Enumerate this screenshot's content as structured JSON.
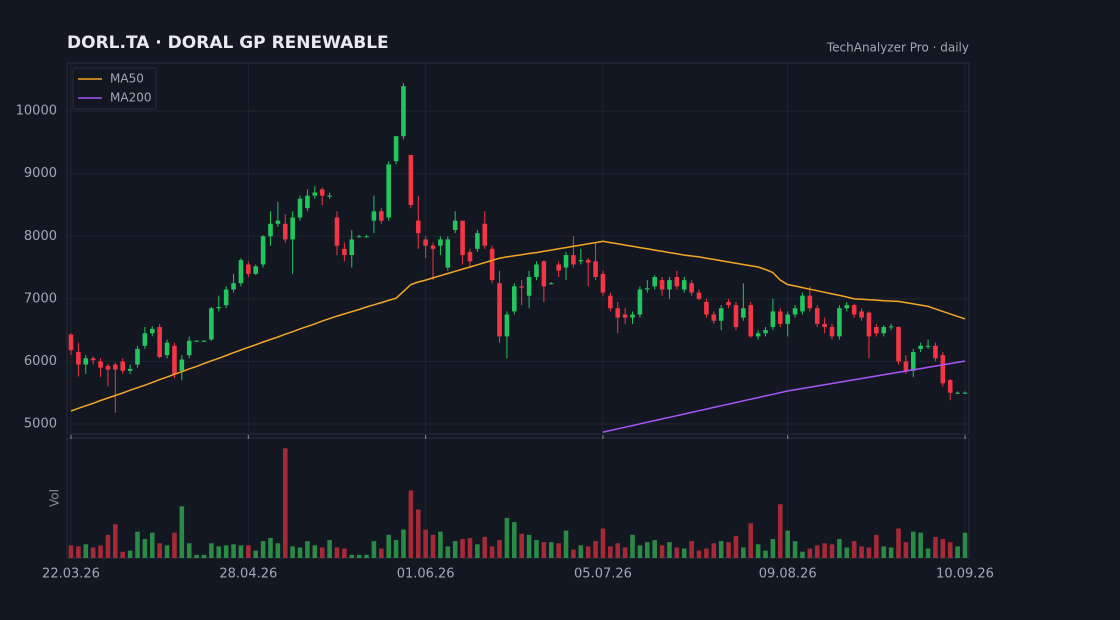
{
  "chart_data": {
    "type": "candlestick",
    "title": "DORL.TA  ·  DORAL GP RENEWABLE",
    "subtitle": "TechAnalyzer Pro · daily",
    "volume_label": "Vol",
    "x": [
      "2026-03-22",
      "2026-03-23",
      "2026-03-24",
      "2026-03-25",
      "2026-03-26",
      "2026-03-29",
      "2026-03-30",
      "2026-03-31",
      "2026-04-05",
      "2026-04-06",
      "2026-04-07",
      "2026-04-09",
      "2026-04-12",
      "2026-04-13",
      "2026-04-14",
      "2026-04-15",
      "2026-04-16",
      "2026-04-19",
      "2026-04-20",
      "2026-04-21",
      "2026-04-22",
      "2026-04-23",
      "2026-04-26",
      "2026-04-27",
      "2026-04-28",
      "2026-04-29",
      "2026-04-30",
      "2026-05-03",
      "2026-05-04",
      "2026-05-05",
      "2026-05-06",
      "2026-05-07",
      "2026-05-10",
      "2026-05-11",
      "2026-05-12",
      "2026-05-13",
      "2026-05-14",
      "2026-05-17",
      "2026-05-18",
      "2026-05-19",
      "2026-05-20",
      "2026-05-21",
      "2026-05-24",
      "2026-05-25",
      "2026-05-26",
      "2026-05-27",
      "2026-05-28",
      "2026-05-31",
      "2026-06-01",
      "2026-06-02",
      "2026-06-03",
      "2026-06-04",
      "2026-06-07",
      "2026-06-08",
      "2026-06-09",
      "2026-06-10",
      "2026-06-11",
      "2026-06-14",
      "2026-06-15",
      "2026-06-16",
      "2026-06-17",
      "2026-06-18",
      "2026-06-21",
      "2026-06-22",
      "2026-06-23",
      "2026-06-24",
      "2026-06-25",
      "2026-06-28",
      "2026-06-29",
      "2026-06-30",
      "2026-07-01",
      "2026-07-02",
      "2026-07-05",
      "2026-07-06",
      "2026-07-07",
      "2026-07-08",
      "2026-07-09",
      "2026-07-12",
      "2026-07-13",
      "2026-07-14",
      "2026-07-15",
      "2026-07-16",
      "2026-07-19",
      "2026-07-20",
      "2026-07-21",
      "2026-07-22",
      "2026-07-23",
      "2026-07-26",
      "2026-07-27",
      "2026-07-28",
      "2026-07-29",
      "2026-07-30",
      "2026-08-02",
      "2026-08-03",
      "2026-08-04",
      "2026-08-05",
      "2026-08-06",
      "2026-08-09",
      "2026-08-10",
      "2026-08-11",
      "2026-08-12",
      "2026-08-13",
      "2026-08-16",
      "2026-08-17",
      "2026-08-18",
      "2026-08-19",
      "2026-08-20",
      "2026-08-23",
      "2026-08-24",
      "2026-08-25",
      "2026-08-26",
      "2026-08-27",
      "2026-08-30",
      "2026-08-31",
      "2026-09-01",
      "2026-09-02",
      "2026-09-03",
      "2026-09-06",
      "2026-09-07",
      "2026-09-08",
      "2026-09-09",
      "2026-09-10"
    ],
    "open": [
      6430,
      6150,
      5950,
      6050,
      6000,
      5930,
      5950,
      6000,
      5850,
      5950,
      6250,
      6450,
      6550,
      6100,
      6250,
      5850,
      6100,
      6330,
      6330,
      6350,
      6850,
      6900,
      7150,
      7250,
      7550,
      7400,
      7550,
      8000,
      8200,
      8200,
      7950,
      8300,
      8450,
      8650,
      8750,
      8650,
      8300,
      7800,
      7700,
      8000,
      8000,
      8250,
      8400,
      8300,
      9200,
      9600,
      9300,
      8250,
      7950,
      7850,
      7850,
      7500,
      8100,
      8250,
      7750,
      7800,
      8200,
      7800,
      7250,
      6400,
      6800,
      7200,
      7050,
      7350,
      7600,
      7250,
      7550,
      7500,
      7700,
      7600,
      7620,
      7600,
      7400,
      7050,
      6850,
      6750,
      6700,
      6750,
      7150,
      7200,
      7300,
      7150,
      7350,
      7150,
      7250,
      7100,
      6950,
      6750,
      6650,
      6950,
      6900,
      6700,
      6900,
      6400,
      6450,
      6550,
      6800,
      6600,
      6750,
      6800,
      7050,
      6850,
      6600,
      6550,
      6400,
      6850,
      6900,
      6800,
      6780,
      6550,
      6450,
      6550,
      6550,
      6000,
      5850,
      6200,
      6250,
      6250,
      6100,
      5700,
      5500,
      5500
    ],
    "high": [
      6450,
      6300,
      6100,
      6080,
      6050,
      5960,
      5980,
      6050,
      5950,
      6250,
      6550,
      6560,
      6600,
      6350,
      6300,
      6100,
      6400,
      6340,
      6340,
      6870,
      7050,
      7200,
      7400,
      7650,
      7600,
      7550,
      8020,
      8400,
      8550,
      8350,
      8400,
      8650,
      8750,
      8800,
      8780,
      8700,
      8400,
      7900,
      8100,
      8020,
      8020,
      8650,
      8450,
      9200,
      9600,
      10450,
      9300,
      8650,
      8000,
      7900,
      8000,
      8000,
      8400,
      8250,
      7800,
      8100,
      8400,
      7850,
      7450,
      6800,
      7250,
      7300,
      7450,
      7600,
      7620,
      7270,
      7600,
      7750,
      8000,
      7800,
      7650,
      7900,
      7450,
      7100,
      6950,
      6850,
      6800,
      7200,
      7300,
      7380,
      7350,
      7350,
      7450,
      7350,
      7300,
      7150,
      7000,
      6800,
      6900,
      7000,
      6950,
      7250,
      6950,
      6500,
      6550,
      7000,
      6850,
      6800,
      6900,
      7100,
      7200,
      6900,
      6700,
      6600,
      6900,
      6950,
      6920,
      6850,
      6800,
      6600,
      6580,
      6600,
      6560,
      6100,
      6200,
      6300,
      6350,
      6300,
      6150,
      5720,
      5520,
      5520
    ],
    "low": [
      6100,
      5760,
      5800,
      5950,
      5750,
      5600,
      5180,
      5800,
      5800,
      5900,
      6200,
      6400,
      6050,
      6050,
      5730,
      5700,
      6050,
      6320,
      6320,
      6330,
      6800,
      6850,
      7100,
      7200,
      7350,
      7380,
      7500,
      7850,
      8150,
      7900,
      7400,
      8250,
      8400,
      8600,
      8500,
      8600,
      7700,
      7600,
      7500,
      7980,
      7980,
      8050,
      8200,
      8250,
      9150,
      9550,
      8450,
      7800,
      7650,
      7300,
      7700,
      7450,
      8050,
      7550,
      7500,
      7750,
      7800,
      7250,
      6300,
      6050,
      6750,
      6900,
      6850,
      7300,
      6950,
      7230,
      7350,
      7300,
      7500,
      7550,
      7200,
      7300,
      7050,
      6800,
      6450,
      6600,
      6600,
      6700,
      7100,
      7150,
      7050,
      7000,
      7150,
      7100,
      7050,
      6980,
      6700,
      6600,
      6500,
      6850,
      6500,
      6650,
      6380,
      6350,
      6400,
      6500,
      6550,
      6400,
      6700,
      6750,
      6800,
      6550,
      6450,
      6350,
      6350,
      6800,
      6700,
      6650,
      6050,
      6400,
      6400,
      6500,
      5950,
      5800,
      5750,
      6150,
      6200,
      6000,
      5600,
      5380,
      5480,
      5480
    ],
    "close": [
      6180,
      5950,
      6050,
      6020,
      5900,
      5870,
      5870,
      5850,
      5880,
      6200,
      6450,
      6520,
      6070,
      6300,
      5800,
      6030,
      6330,
      6330,
      6330,
      6850,
      6870,
      7150,
      7250,
      7620,
      7400,
      7520,
      8000,
      8200,
      8250,
      7950,
      8300,
      8600,
      8650,
      8700,
      8650,
      8650,
      7850,
      7700,
      7950,
      8000,
      8000,
      8400,
      8250,
      9150,
      9600,
      10400,
      8500,
      8050,
      7850,
      7800,
      7950,
      7950,
      8250,
      7700,
      7600,
      8050,
      7850,
      7300,
      6400,
      6750,
      7200,
      7180,
      7350,
      7550,
      7200,
      7250,
      7450,
      7700,
      7550,
      7620,
      7580,
      7350,
      7100,
      6850,
      6700,
      6700,
      6750,
      7150,
      7170,
      7350,
      7150,
      7300,
      7200,
      7300,
      7100,
      7000,
      6750,
      6650,
      6850,
      6900,
      6550,
      6850,
      6400,
      6450,
      6500,
      6800,
      6600,
      6750,
      6850,
      7050,
      6850,
      6600,
      6550,
      6400,
      6850,
      6900,
      6750,
      6700,
      6400,
      6450,
      6550,
      6560,
      6000,
      5850,
      6150,
      6250,
      6250,
      6050,
      5650,
      5500,
      5500,
      5500
    ],
    "volume": [
      12,
      11,
      13,
      10,
      12,
      22,
      32,
      6,
      7,
      25,
      18,
      24,
      14,
      12,
      24,
      49,
      14,
      3,
      3,
      14,
      11,
      12,
      13,
      12,
      12,
      7,
      16,
      19,
      14,
      104,
      11,
      10,
      16,
      12,
      10,
      17,
      10,
      9,
      3,
      3,
      3,
      16,
      9,
      22,
      17,
      27,
      64,
      46,
      27,
      22,
      25,
      11,
      16,
      18,
      19,
      13,
      20,
      11,
      17,
      38,
      34,
      23,
      22,
      17,
      15,
      15,
      14,
      26,
      8,
      12,
      11,
      16,
      28,
      11,
      14,
      10,
      22,
      12,
      15,
      17,
      12,
      15,
      10,
      9,
      16,
      7,
      9,
      14,
      16,
      15,
      21,
      10,
      33,
      13,
      7,
      18,
      51,
      26,
      16,
      6,
      9,
      12,
      14,
      13,
      18,
      10,
      16,
      11,
      10,
      22,
      11,
      10,
      28,
      15,
      25,
      24,
      9,
      20,
      18,
      15,
      11,
      24
    ],
    "series": [
      {
        "name": "MA50",
        "color": "#f5a623",
        "values": [
          5208,
          5250,
          5290,
          5330,
          5375,
          5415,
          5455,
          5495,
          5540,
          5580,
          5620,
          5665,
          5710,
          5750,
          5795,
          5835,
          5880,
          5920,
          5965,
          6010,
          6050,
          6095,
          6140,
          6182,
          6225,
          6265,
          6310,
          6350,
          6390,
          6435,
          6475,
          6520,
          6560,
          6600,
          6645,
          6685,
          6725,
          6760,
          6795,
          6830,
          6870,
          6905,
          6940,
          6975,
          7010,
          7120,
          7230,
          7270,
          7300,
          7335,
          7370,
          7405,
          7440,
          7475,
          7510,
          7545,
          7580,
          7615,
          7650,
          7670,
          7690,
          7705,
          7725,
          7740,
          7760,
          7780,
          7800,
          7820,
          7840,
          7860,
          7880,
          7900,
          7920,
          7900,
          7880,
          7860,
          7840,
          7820,
          7800,
          7780,
          7760,
          7740,
          7720,
          7700,
          7685,
          7670,
          7650,
          7630,
          7610,
          7590,
          7570,
          7550,
          7530,
          7510,
          7470,
          7420,
          7300,
          7230,
          7205,
          7180,
          7155,
          7130,
          7105,
          7080,
          7055,
          7030,
          7000,
          6995,
          6985,
          6980,
          6970,
          6965,
          6960,
          6940,
          6920,
          6900,
          6880,
          6840,
          6800,
          6760,
          6720,
          6680
        ]
      },
      {
        "name": "MA200",
        "color": "#a855f7",
        "values": [
          null,
          null,
          null,
          null,
          null,
          null,
          null,
          null,
          null,
          null,
          null,
          null,
          null,
          null,
          null,
          null,
          null,
          null,
          null,
          null,
          null,
          null,
          null,
          null,
          null,
          null,
          null,
          null,
          null,
          null,
          null,
          null,
          null,
          null,
          null,
          null,
          null,
          null,
          null,
          null,
          null,
          null,
          null,
          null,
          null,
          null,
          null,
          null,
          null,
          null,
          null,
          null,
          null,
          null,
          null,
          null,
          null,
          null,
          null,
          null,
          null,
          null,
          null,
          null,
          null,
          null,
          null,
          null,
          null,
          null,
          null,
          null,
          4870,
          4896,
          4923,
          4949,
          4975,
          5002,
          5028,
          5054,
          5081,
          5107,
          5133,
          5160,
          5186,
          5212,
          5238,
          5265,
          5291,
          5317,
          5344,
          5370,
          5396,
          5422,
          5449,
          5475,
          5501,
          5527,
          5547,
          5567,
          5587,
          5607,
          5627,
          5647,
          5667,
          5687,
          5707,
          5727,
          5747,
          5767,
          5787,
          5807,
          5826,
          5846,
          5866,
          5886,
          5906,
          5926,
          5946,
          5966,
          5986,
          6006
        ]
      }
    ],
    "up_color": "#22c55e",
    "down_color": "#f23645",
    "volume_up_color": "#2a8a46",
    "volume_down_color": "#a52a38",
    "ylim": [
      4840,
      10770
    ],
    "yticks": [
      5000,
      6000,
      7000,
      8000,
      9000,
      10000
    ],
    "volume_ylim": [
      0,
      110
    ],
    "xticks": [
      {
        "value": "2026-03-22",
        "label": "22.03.26"
      },
      {
        "value": "2026-04-28",
        "label": "28.04.26"
      },
      {
        "value": "2026-06-01",
        "label": "01.06.26"
      },
      {
        "value": "2026-07-05",
        "label": "05.07.26"
      },
      {
        "value": "2026-08-09",
        "label": "09.08.26"
      },
      {
        "value": "2026-09-10",
        "label": "10.09.26"
      }
    ],
    "grid": true,
    "legend": "upper left"
  }
}
